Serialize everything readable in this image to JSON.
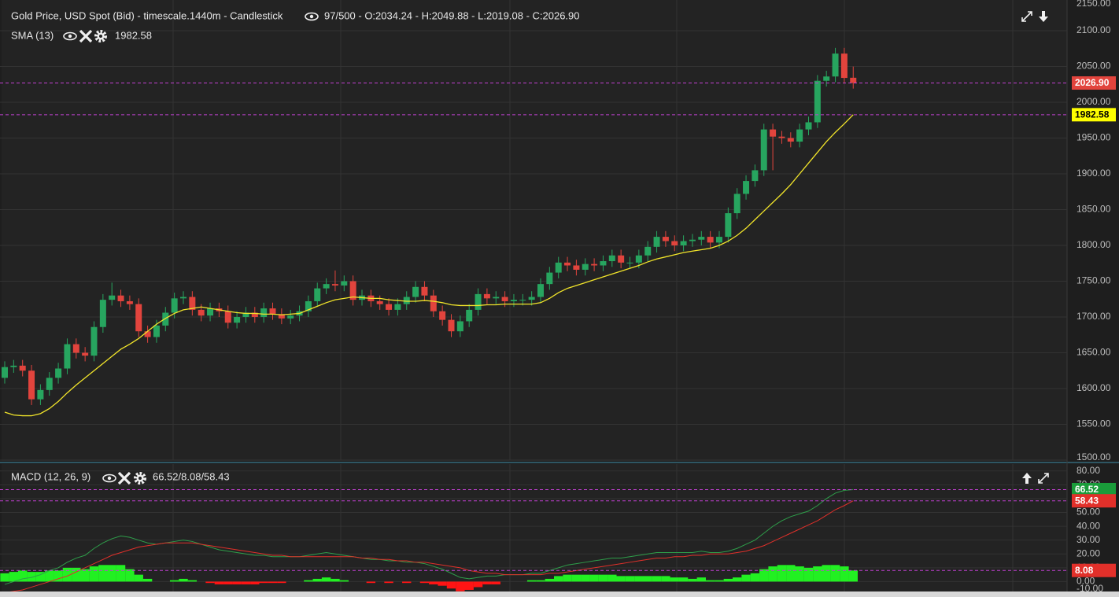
{
  "chart_data": [
    {
      "type": "candlestick",
      "title": "Gold Price, USD Spot (Bid) - timescale.1440m - Candlestick",
      "info": "97/500 - O:2034.24 - H:2049.88 - L:2019.08 - C:2026.90",
      "open": [
        1615,
        1630,
        1632,
        1625,
        1585,
        1598,
        1615,
        1628,
        1662,
        1650,
        1646,
        1686,
        1724,
        1730,
        1722,
        1718,
        1680,
        1672,
        1688,
        1706,
        1726,
        1728,
        1710,
        1702,
        1712,
        1708,
        1692,
        1700,
        1706,
        1700,
        1712,
        1704,
        1698,
        1702,
        1708,
        1722,
        1740,
        1746,
        1744,
        1750,
        1724,
        1730,
        1722,
        1718,
        1710,
        1718,
        1728,
        1742,
        1730,
        1708,
        1696,
        1680,
        1694,
        1710,
        1732,
        1726,
        1728,
        1722,
        1724,
        1724,
        1728,
        1746,
        1762,
        1776,
        1772,
        1766,
        1774,
        1772,
        1778,
        1786,
        1776,
        1776,
        1786,
        1798,
        1812,
        1806,
        1800,
        1806,
        1808,
        1812,
        1804,
        1812,
        1845,
        1872,
        1890,
        1905,
        1962,
        1952,
        1950,
        1945,
        1962,
        1972,
        2030,
        2036,
        2068,
        2034.24
      ],
      "high": [
        1638,
        1640,
        1640,
        1633,
        1606,
        1623,
        1636,
        1670,
        1670,
        1658,
        1694,
        1732,
        1748,
        1738,
        1730,
        1726,
        1688,
        1696,
        1714,
        1734,
        1736,
        1736,
        1718,
        1720,
        1720,
        1716,
        1708,
        1714,
        1714,
        1720,
        1720,
        1712,
        1710,
        1716,
        1730,
        1748,
        1754,
        1765,
        1758,
        1758,
        1738,
        1738,
        1730,
        1726,
        1726,
        1736,
        1750,
        1750,
        1738,
        1716,
        1704,
        1702,
        1718,
        1740,
        1740,
        1736,
        1736,
        1732,
        1732,
        1736,
        1754,
        1770,
        1784,
        1784,
        1780,
        1782,
        1782,
        1786,
        1794,
        1794,
        1784,
        1794,
        1806,
        1820,
        1820,
        1814,
        1814,
        1816,
        1820,
        1820,
        1820,
        1853,
        1880,
        1898,
        1913,
        1970,
        1970,
        1960,
        1958,
        1970,
        1980,
        2038,
        2044,
        2076,
        2076,
        2049.88
      ],
      "low": [
        1607,
        1622,
        1617,
        1577,
        1577,
        1590,
        1607,
        1620,
        1642,
        1638,
        1638,
        1678,
        1716,
        1714,
        1710,
        1672,
        1664,
        1664,
        1680,
        1698,
        1718,
        1702,
        1694,
        1694,
        1700,
        1684,
        1684,
        1692,
        1692,
        1692,
        1696,
        1690,
        1690,
        1694,
        1700,
        1714,
        1732,
        1736,
        1736,
        1716,
        1716,
        1714,
        1710,
        1702,
        1702,
        1710,
        1720,
        1722,
        1700,
        1688,
        1672,
        1672,
        1686,
        1702,
        1718,
        1718,
        1714,
        1714,
        1716,
        1716,
        1720,
        1738,
        1754,
        1764,
        1758,
        1758,
        1764,
        1764,
        1770,
        1768,
        1768,
        1768,
        1778,
        1790,
        1798,
        1792,
        1792,
        1798,
        1800,
        1796,
        1796,
        1804,
        1837,
        1864,
        1882,
        1897,
        1905,
        1942,
        1937,
        1937,
        1954,
        1964,
        2022,
        2028,
        2026,
        2019.08
      ],
      "close": [
        1630,
        1632,
        1625,
        1585,
        1598,
        1615,
        1628,
        1662,
        1650,
        1646,
        1686,
        1724,
        1730,
        1722,
        1718,
        1680,
        1672,
        1688,
        1706,
        1726,
        1728,
        1710,
        1702,
        1712,
        1708,
        1692,
        1700,
        1706,
        1700,
        1712,
        1704,
        1698,
        1702,
        1708,
        1722,
        1740,
        1746,
        1744,
        1750,
        1724,
        1730,
        1722,
        1718,
        1710,
        1718,
        1728,
        1742,
        1730,
        1708,
        1696,
        1680,
        1694,
        1710,
        1732,
        1726,
        1728,
        1722,
        1724,
        1724,
        1728,
        1746,
        1762,
        1776,
        1772,
        1766,
        1774,
        1772,
        1778,
        1786,
        1776,
        1776,
        1786,
        1798,
        1812,
        1806,
        1800,
        1806,
        1808,
        1812,
        1804,
        1812,
        1845,
        1872,
        1890,
        1905,
        1962,
        1952,
        1950,
        1945,
        1962,
        1972,
        2030,
        2036,
        2068,
        2034,
        2026.9
      ],
      "up_color": "#27a55f",
      "down_color": "#e2443d",
      "sma": {
        "name": "SMA (13)",
        "color": "#f2e52a",
        "values": [
          1567,
          1563,
          1562,
          1562,
          1565,
          1572,
          1582,
          1594,
          1605,
          1615,
          1625,
          1635,
          1645,
          1655,
          1662,
          1670,
          1680,
          1690,
          1698,
          1705,
          1710,
          1712,
          1714,
          1712,
          1710,
          1708,
          1706,
          1705,
          1705,
          1704,
          1704,
          1703,
          1704,
          1705,
          1710,
          1715,
          1720,
          1724,
          1726,
          1728,
          1727,
          1726,
          1726,
          1724,
          1723,
          1722,
          1722,
          1723,
          1722,
          1720,
          1717,
          1716,
          1716,
          1716,
          1717,
          1717,
          1718,
          1718,
          1718,
          1718,
          1720,
          1726,
          1734,
          1740,
          1744,
          1748,
          1752,
          1756,
          1760,
          1764,
          1768,
          1772,
          1777,
          1781,
          1784,
          1787,
          1790,
          1792,
          1794,
          1796,
          1800,
          1806,
          1814,
          1824,
          1836,
          1848,
          1860,
          1872,
          1885,
          1900,
          1915,
          1930,
          1945,
          1958,
          1970,
          1982.58
        ]
      },
      "ylim": [
        1500,
        2150
      ],
      "yticks": [
        {
          "value": 1500,
          "label": "1500.00"
        },
        {
          "value": 1550,
          "label": "1550.00"
        },
        {
          "value": 1600,
          "label": "1600.00"
        },
        {
          "value": 1650,
          "label": "1650.00"
        },
        {
          "value": 1700,
          "label": "1700.00"
        },
        {
          "value": 1750,
          "label": "1750.00"
        },
        {
          "value": 1800,
          "label": "1800.00"
        },
        {
          "value": 1850,
          "label": "1850.00"
        },
        {
          "value": 1900,
          "label": "1900.00"
        },
        {
          "value": 1950,
          "label": "1950.00"
        },
        {
          "value": 2000,
          "label": "2000.00"
        },
        {
          "value": 2050,
          "label": "2050.00"
        },
        {
          "value": 2100,
          "label": "2100.00"
        },
        {
          "value": 2150,
          "label": "2150.00"
        }
      ],
      "grid": true,
      "markers": [
        {
          "value": 2026.9,
          "label": "2026.90",
          "color": "#e2443d",
          "text_color": "#ffffff"
        },
        {
          "value": 1982.58,
          "label": "1982.58",
          "color": "#ffff00",
          "text_color": "#000000"
        }
      ]
    },
    {
      "type": "macd",
      "title": "MACD (12, 26, 9)",
      "info": "66.52/8.08/58.43",
      "macd": {
        "color": "#2e9e4a",
        "values": [
          -2,
          0,
          2,
          3,
          5,
          8,
          10,
          14,
          17,
          19,
          24,
          28,
          31,
          33,
          32,
          30,
          28,
          27,
          28,
          29,
          30,
          29,
          27,
          25,
          23,
          22,
          21,
          20,
          19,
          19,
          18,
          18,
          18,
          18,
          19,
          20,
          21,
          20,
          19,
          18,
          17,
          16,
          16,
          15,
          15,
          14,
          14,
          13,
          11,
          9,
          6,
          3,
          2,
          3,
          4,
          4,
          5,
          5,
          5,
          6,
          6,
          8,
          10,
          12,
          13,
          14,
          15,
          16,
          17,
          17,
          18,
          19,
          20,
          21,
          21,
          21,
          21,
          21,
          22,
          21,
          21,
          22,
          24,
          27,
          30,
          35,
          40,
          44,
          47,
          49,
          51,
          55,
          60,
          64,
          66,
          66.52
        ]
      },
      "signal": {
        "color": "#e0302a",
        "values": [
          -8,
          -7,
          -6,
          -4,
          -2,
          0,
          2,
          4,
          7,
          10,
          13,
          16,
          19,
          21,
          23,
          25,
          26,
          27,
          28,
          28,
          28,
          28,
          27,
          26,
          25,
          24,
          23,
          22,
          21,
          20,
          19,
          19,
          18,
          18,
          18,
          18,
          18,
          18,
          18,
          18,
          17,
          17,
          16,
          16,
          15,
          15,
          14,
          14,
          13,
          12,
          11,
          10,
          8,
          7,
          6,
          6,
          5,
          5,
          5,
          5,
          5,
          6,
          6,
          7,
          8,
          9,
          10,
          11,
          12,
          13,
          14,
          15,
          16,
          17,
          17,
          18,
          18,
          19,
          19,
          20,
          20,
          20,
          21,
          22,
          24,
          26,
          29,
          32,
          35,
          38,
          41,
          44,
          48,
          52,
          55,
          58.43
        ]
      },
      "histogram": {
        "up_color": "#22f022",
        "down_color": "#ff1414",
        "values": [
          6,
          7,
          8,
          7,
          7,
          8,
          8,
          10,
          10,
          9,
          11,
          12,
          12,
          12,
          9,
          5,
          2,
          0,
          0,
          1,
          2,
          1,
          0,
          -1,
          -2,
          -2,
          -2,
          -2,
          -2,
          -1,
          -1,
          -1,
          0,
          0,
          1,
          2,
          3,
          2,
          1,
          0,
          0,
          -1,
          0,
          -1,
          0,
          -1,
          0,
          -1,
          -2,
          -3,
          -5,
          -7,
          -6,
          -4,
          -2,
          -2,
          0,
          0,
          0,
          1,
          1,
          2,
          4,
          5,
          5,
          5,
          5,
          5,
          5,
          4,
          4,
          4,
          4,
          4,
          4,
          3,
          3,
          2,
          3,
          1,
          1,
          2,
          3,
          5,
          6,
          9,
          11,
          12,
          12,
          11,
          10,
          11,
          12,
          12,
          11,
          8.08
        ]
      },
      "ylim": [
        -10,
        85
      ],
      "yticks": [
        {
          "value": -10,
          "label": "-10.00"
        },
        {
          "value": 0,
          "label": "0.00"
        },
        {
          "value": 10,
          "label": "10.00"
        },
        {
          "value": 20,
          "label": "20.00"
        },
        {
          "value": 30,
          "label": "30.00"
        },
        {
          "value": 40,
          "label": "40.00"
        },
        {
          "value": 50,
          "label": "50.00"
        },
        {
          "value": 60,
          "label": "60.00"
        },
        {
          "value": 70,
          "label": "70.00"
        },
        {
          "value": 80,
          "label": "80.00"
        }
      ],
      "grid": true,
      "markers": [
        {
          "value": 66.52,
          "label": "66.52",
          "color": "#1a9c3a",
          "text_color": "#ffffff"
        },
        {
          "value": 58.43,
          "label": "58.43",
          "color": "#e2302a",
          "text_color": "#ffffff"
        },
        {
          "value": 8.08,
          "label": "8.08",
          "color": "#e2302a",
          "text_color": "#ffffff"
        }
      ]
    }
  ]
}
